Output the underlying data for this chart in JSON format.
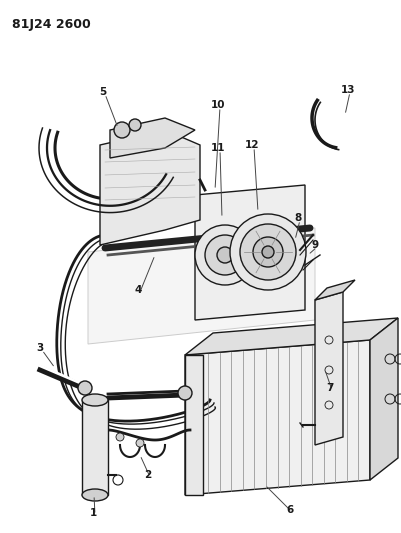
{
  "title": "81J24 2600",
  "bg_color": "#ffffff",
  "lc": "#1a1a1a",
  "fig_width": 4.01,
  "fig_height": 5.33,
  "dpi": 100
}
